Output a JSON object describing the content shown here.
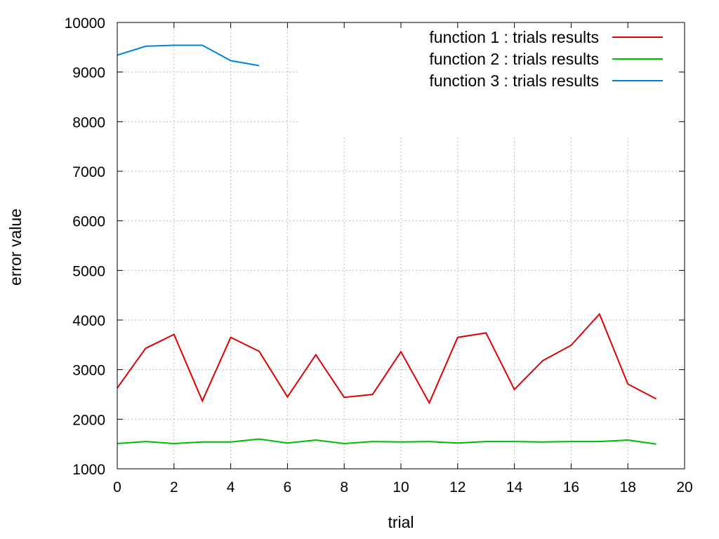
{
  "chart_data": {
    "type": "line",
    "title": "",
    "xlabel": "trial",
    "ylabel": "error value",
    "xlim": [
      0,
      20
    ],
    "ylim": [
      1000,
      10000
    ],
    "xticks": [
      0,
      2,
      4,
      6,
      8,
      10,
      12,
      14,
      16,
      18,
      20
    ],
    "yticks": [
      1000,
      2000,
      3000,
      4000,
      5000,
      6000,
      7000,
      8000,
      9000,
      10000
    ],
    "grid": true,
    "legend_position": "top-right",
    "series": [
      {
        "name": "function 1 : trials results",
        "color": "#dd0000",
        "x": [
          0,
          1,
          2,
          3,
          4,
          5,
          6,
          7,
          8,
          9,
          10,
          11,
          12,
          13,
          14,
          15,
          16,
          17,
          18,
          19
        ],
        "y": [
          2630,
          3430,
          3710,
          2370,
          3650,
          3370,
          2450,
          3300,
          2440,
          2500,
          3360,
          2330,
          3650,
          3740,
          2600,
          3180,
          3490,
          4120,
          2710,
          2410
        ]
      },
      {
        "name": "function 2 : trials results",
        "color": "#00bb00",
        "x": [
          0,
          1,
          2,
          3,
          4,
          5,
          6,
          7,
          8,
          9,
          10,
          11,
          12,
          13,
          14,
          15,
          16,
          17,
          18,
          19
        ],
        "y": [
          1510,
          1550,
          1510,
          1540,
          1540,
          1600,
          1520,
          1580,
          1510,
          1550,
          1540,
          1550,
          1520,
          1550,
          1550,
          1540,
          1550,
          1550,
          1580,
          1500
        ]
      },
      {
        "name": "function 3 : trials results",
        "color": "#0080e0",
        "x": [
          0,
          1,
          2,
          3,
          4,
          5
        ],
        "y": [
          9340,
          9520,
          9540,
          9540,
          9230,
          9130
        ]
      }
    ]
  }
}
